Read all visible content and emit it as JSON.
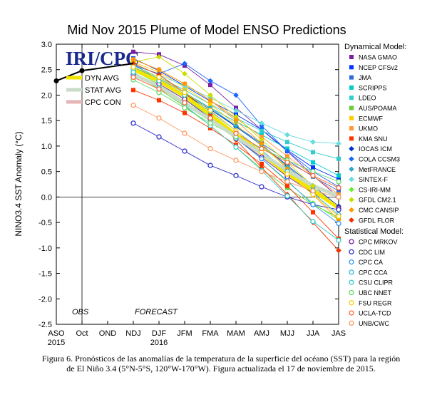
{
  "chart_data": {
    "type": "line",
    "title": "Mid Nov 2015 Plume of Model ENSO Predictions",
    "ylabel": "NINO3.4 SST Anomaly (°C)",
    "ylim": [
      -2.5,
      3.0
    ],
    "yticks": [
      "3.0",
      "2.5",
      "2.0",
      "1.5",
      "1.0",
      "0.5",
      "0.0",
      "-0.5",
      "-1.0",
      "-1.5",
      "-2.0",
      "-2.5"
    ],
    "categories": [
      "ASO",
      "Oct",
      "OND",
      "NDJ",
      "DJF",
      "JFM",
      "FMA",
      "MAM",
      "AMJ",
      "MJJ",
      "JJA",
      "JAS"
    ],
    "year_labels": [
      {
        "text": "2015",
        "at": 0
      },
      {
        "text": "2016",
        "at": 4
      }
    ],
    "section_labels": {
      "obs": "OBS",
      "forecast": "FORECAST"
    },
    "watermark": "IRI/CPC",
    "observed": {
      "values": [
        2.28,
        2.48
      ]
    },
    "avg_legend": [
      {
        "name": "DYN AVG",
        "color": "#f2e600",
        "values": [
          2.5,
          2.28,
          1.98,
          1.62,
          1.22,
          0.85,
          0.45,
          0.13,
          -0.22
        ]
      },
      {
        "name": "STAT AVG",
        "color": "#c8dcc8",
        "values": [
          2.4,
          2.18,
          1.84,
          1.52,
          1.18,
          0.85,
          0.52,
          0.22,
          0.02
        ]
      },
      {
        "name": "CPC CON",
        "color": "#e6b4b4",
        "values": [
          null,
          null,
          null,
          null,
          null,
          null,
          null,
          null,
          null
        ]
      }
    ],
    "dynamical_title": "Dynamical Model:",
    "statistical_title": "Statistical Model:",
    "dynamical": [
      {
        "name": "NASA GMAO",
        "color": "#7a1fa2",
        "marker": "square",
        "values": [
          2.85,
          2.8,
          2.58,
          2.2,
          1.75,
          1.32,
          0.9,
          0.42,
          0.0
        ]
      },
      {
        "name": "NCEP CFSv2",
        "color": "#0033ff",
        "marker": "square",
        "values": [
          2.72,
          2.48,
          2.18,
          1.88,
          1.62,
          1.32,
          0.92,
          0.58,
          0.35
        ]
      },
      {
        "name": "JMA",
        "color": "#2f6bd6",
        "marker": "square",
        "values": [
          2.62,
          2.28,
          2.0,
          1.72,
          1.4,
          1.05,
          0.72,
          0.4,
          0.12
        ]
      },
      {
        "name": "SCRIPPS",
        "color": "#00cccc",
        "marker": "square",
        "values": [
          2.55,
          2.3,
          2.02,
          1.75,
          1.48,
          1.22,
          0.95,
          0.68,
          0.42
        ]
      },
      {
        "name": "LDEO",
        "color": "#33cccc",
        "marker": "square",
        "values": [
          2.58,
          2.35,
          2.1,
          1.82,
          1.55,
          1.3,
          1.08,
          0.88,
          0.75
        ]
      },
      {
        "name": "AUS/POAMA",
        "color": "#66cc33",
        "marker": "square",
        "values": [
          2.42,
          2.12,
          1.78,
          1.4,
          0.98,
          0.55,
          0.18,
          -0.15,
          -0.4
        ]
      },
      {
        "name": "ECMWF",
        "color": "#ffcc00",
        "marker": "square",
        "values": [
          2.65,
          2.45,
          2.15,
          1.82,
          1.42,
          1.0,
          0.58,
          0.15,
          -0.25
        ]
      },
      {
        "name": "UKMO",
        "color": "#ff9933",
        "marker": "square",
        "values": [
          2.7,
          2.5,
          2.22,
          1.9,
          1.55,
          1.18,
          0.8,
          0.42,
          0.05
        ]
      },
      {
        "name": "KMA SNU",
        "color": "#ff3300",
        "marker": "square",
        "values": [
          2.1,
          1.9,
          1.65,
          1.35,
          1.02,
          0.65,
          0.22,
          -0.3,
          -0.82
        ]
      },
      {
        "name": "IOCAS ICM",
        "color": "#0033cc",
        "marker": "diamond",
        "values": [
          2.5,
          2.28,
          2.02,
          1.72,
          1.38,
          1.02,
          0.62,
          0.22,
          -0.18
        ]
      },
      {
        "name": "COLA CCSM3",
        "color": "#1a66ff",
        "marker": "diamond",
        "values": [
          2.58,
          2.42,
          2.62,
          2.28,
          2.0,
          1.4,
          0.9,
          0.5,
          0.2
        ]
      },
      {
        "name": "MetFRANCE",
        "color": "#33aacc",
        "marker": "diamond",
        "values": [
          2.55,
          2.32,
          2.05,
          1.75,
          1.4,
          1.02,
          0.6,
          0.18,
          -0.22
        ]
      },
      {
        "name": "SINTEX-F",
        "color": "#66dddd",
        "marker": "diamond",
        "values": [
          2.6,
          2.4,
          2.18,
          1.95,
          1.7,
          1.45,
          1.22,
          1.08,
          1.05
        ]
      },
      {
        "name": "CS-IRI-MM",
        "color": "#66ee33",
        "marker": "diamond",
        "values": [
          2.48,
          2.22,
          1.92,
          1.58,
          1.18,
          0.75,
          0.3,
          -0.12,
          -0.45
        ]
      },
      {
        "name": "GFDL CM2.1",
        "color": "#ccdd00",
        "marker": "diamond",
        "values": [
          2.65,
          2.75,
          2.42,
          2.0,
          1.58,
          1.12,
          0.68,
          0.22,
          -0.22
        ]
      },
      {
        "name": "CMC CANSIP",
        "color": "#ff9900",
        "marker": "diamond",
        "values": [
          2.7,
          2.5,
          2.22,
          1.9,
          1.5,
          1.05,
          0.55,
          0.05,
          -0.45
        ]
      },
      {
        "name": "GFDL FLOR",
        "color": "#ee3300",
        "marker": "diamond",
        "values": [
          2.62,
          2.4,
          2.05,
          1.62,
          1.12,
          0.58,
          0.05,
          -0.5,
          -1.05
        ]
      }
    ],
    "statistical": [
      {
        "name": "CPC MRKOV",
        "color": "#7a1fa2",
        "marker": "circle",
        "values": [
          2.4,
          2.22,
          1.92,
          1.55,
          1.15,
          0.78,
          0.4,
          0.08,
          -0.22
        ]
      },
      {
        "name": "CDC LIM",
        "color": "#3333cc",
        "marker": "circle",
        "values": [
          1.45,
          1.18,
          0.9,
          0.62,
          0.42,
          0.2,
          0.0,
          -0.15,
          -0.25
        ]
      },
      {
        "name": "CPC CA",
        "color": "#3399ff",
        "marker": "circle",
        "values": [
          2.38,
          2.15,
          1.85,
          1.52,
          1.15,
          0.75,
          0.32,
          -0.15,
          -0.52
        ]
      },
      {
        "name": "CPC CCA",
        "color": "#33bbdd",
        "marker": "circle",
        "values": [
          2.5,
          2.28,
          2.0,
          1.68,
          1.3,
          0.92,
          0.5,
          0.08,
          -0.35
        ]
      },
      {
        "name": "CSU CLIPR",
        "color": "#33cccc",
        "marker": "circle",
        "values": [
          2.45,
          2.15,
          1.8,
          1.4,
          0.98,
          0.52,
          0.02,
          -0.48,
          -0.85
        ]
      },
      {
        "name": "UBC NNET",
        "color": "#66dd66",
        "marker": "circle",
        "values": [
          2.3,
          2.05,
          1.75,
          1.45,
          1.18,
          0.95,
          0.72,
          0.5,
          0.3
        ]
      },
      {
        "name": "FSU REGR",
        "color": "#ffcc00",
        "marker": "circle",
        "values": [
          2.55,
          2.35,
          2.05,
          1.7,
          1.3,
          0.88,
          0.45,
          0.05,
          -0.38
        ]
      },
      {
        "name": "UCLA-TCD",
        "color": "#ff6633",
        "marker": "circle",
        "values": [
          2.35,
          2.12,
          1.85,
          1.55,
          1.25,
          0.95,
          0.68,
          0.42,
          0.18
        ]
      },
      {
        "name": "UNB/CWC",
        "color": "#ff9966",
        "marker": "circle",
        "values": [
          1.8,
          1.55,
          1.25,
          0.95,
          0.72,
          0.5,
          0.3,
          0.12,
          0.0
        ]
      }
    ]
  },
  "caption": {
    "line1": "Figura 6. Pronósticos de las anomalías de la temperatura de la superficie del océano (SST) para la región",
    "line2": "de El Niño 3.4 (5°N-5°S, 120°W-170°W). Figura actualizada el 17 de noviembre de 2015."
  }
}
